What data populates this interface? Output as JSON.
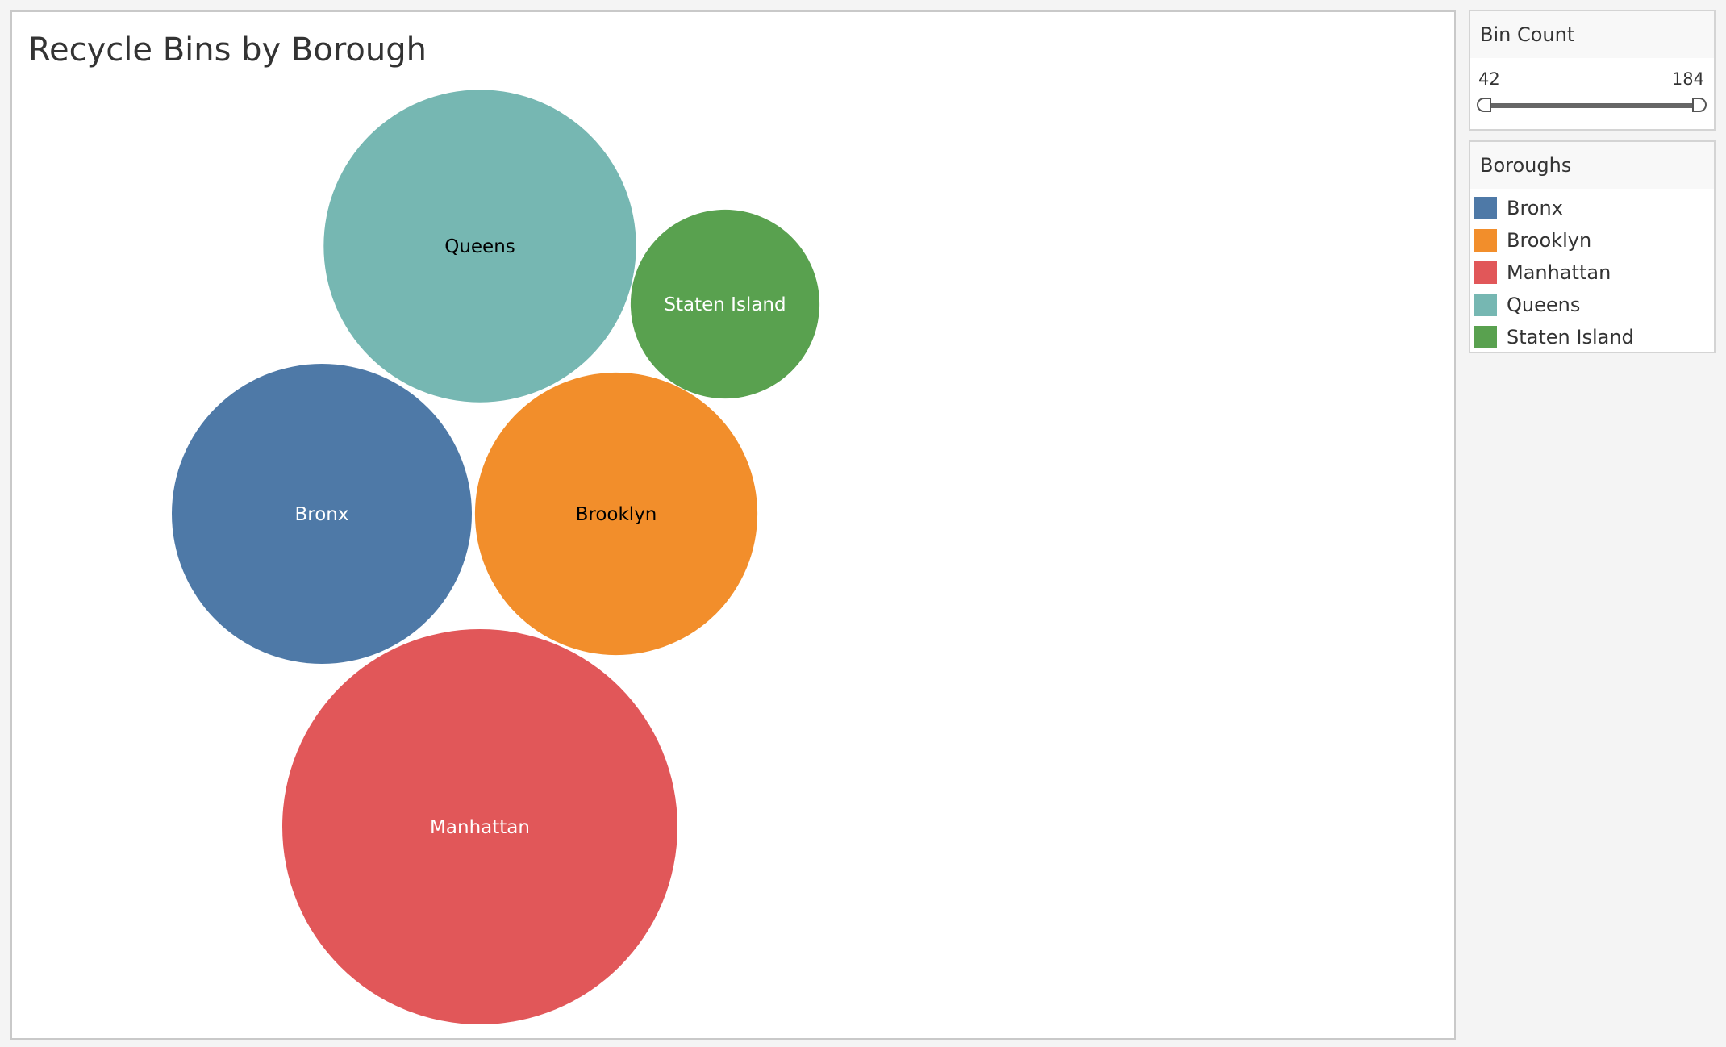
{
  "viz": {
    "title": "Recycle Bins by Borough"
  },
  "filter": {
    "title": "Bin Count",
    "min": "42",
    "max": "184"
  },
  "legend": {
    "title": "Boroughs",
    "items": [
      {
        "label": "Bronx",
        "color": "#4e79a7"
      },
      {
        "label": "Brooklyn",
        "color": "#f28e2b"
      },
      {
        "label": "Manhattan",
        "color": "#e15759"
      },
      {
        "label": "Queens",
        "color": "#76b7b2"
      },
      {
        "label": "Staten Island",
        "color": "#59a14f"
      }
    ]
  },
  "chart_data": {
    "type": "bubble",
    "title": "Recycle Bins by Borough",
    "size_measure": "Bin Count",
    "size_range": [
      42,
      184
    ],
    "series": [
      {
        "name": "Queens",
        "value": 115,
        "color": "#76b7b2",
        "label_color": "#000000"
      },
      {
        "name": "Staten Island",
        "value": 42,
        "color": "#59a14f",
        "label_color": "#ffffff"
      },
      {
        "name": "Bronx",
        "value": 106,
        "color": "#4e79a7",
        "label_color": "#ffffff"
      },
      {
        "name": "Brooklyn",
        "value": 94,
        "color": "#f28e2b",
        "label_color": "#000000"
      },
      {
        "name": "Manhattan",
        "value": 184,
        "color": "#e15759",
        "label_color": "#ffffff"
      }
    ]
  }
}
